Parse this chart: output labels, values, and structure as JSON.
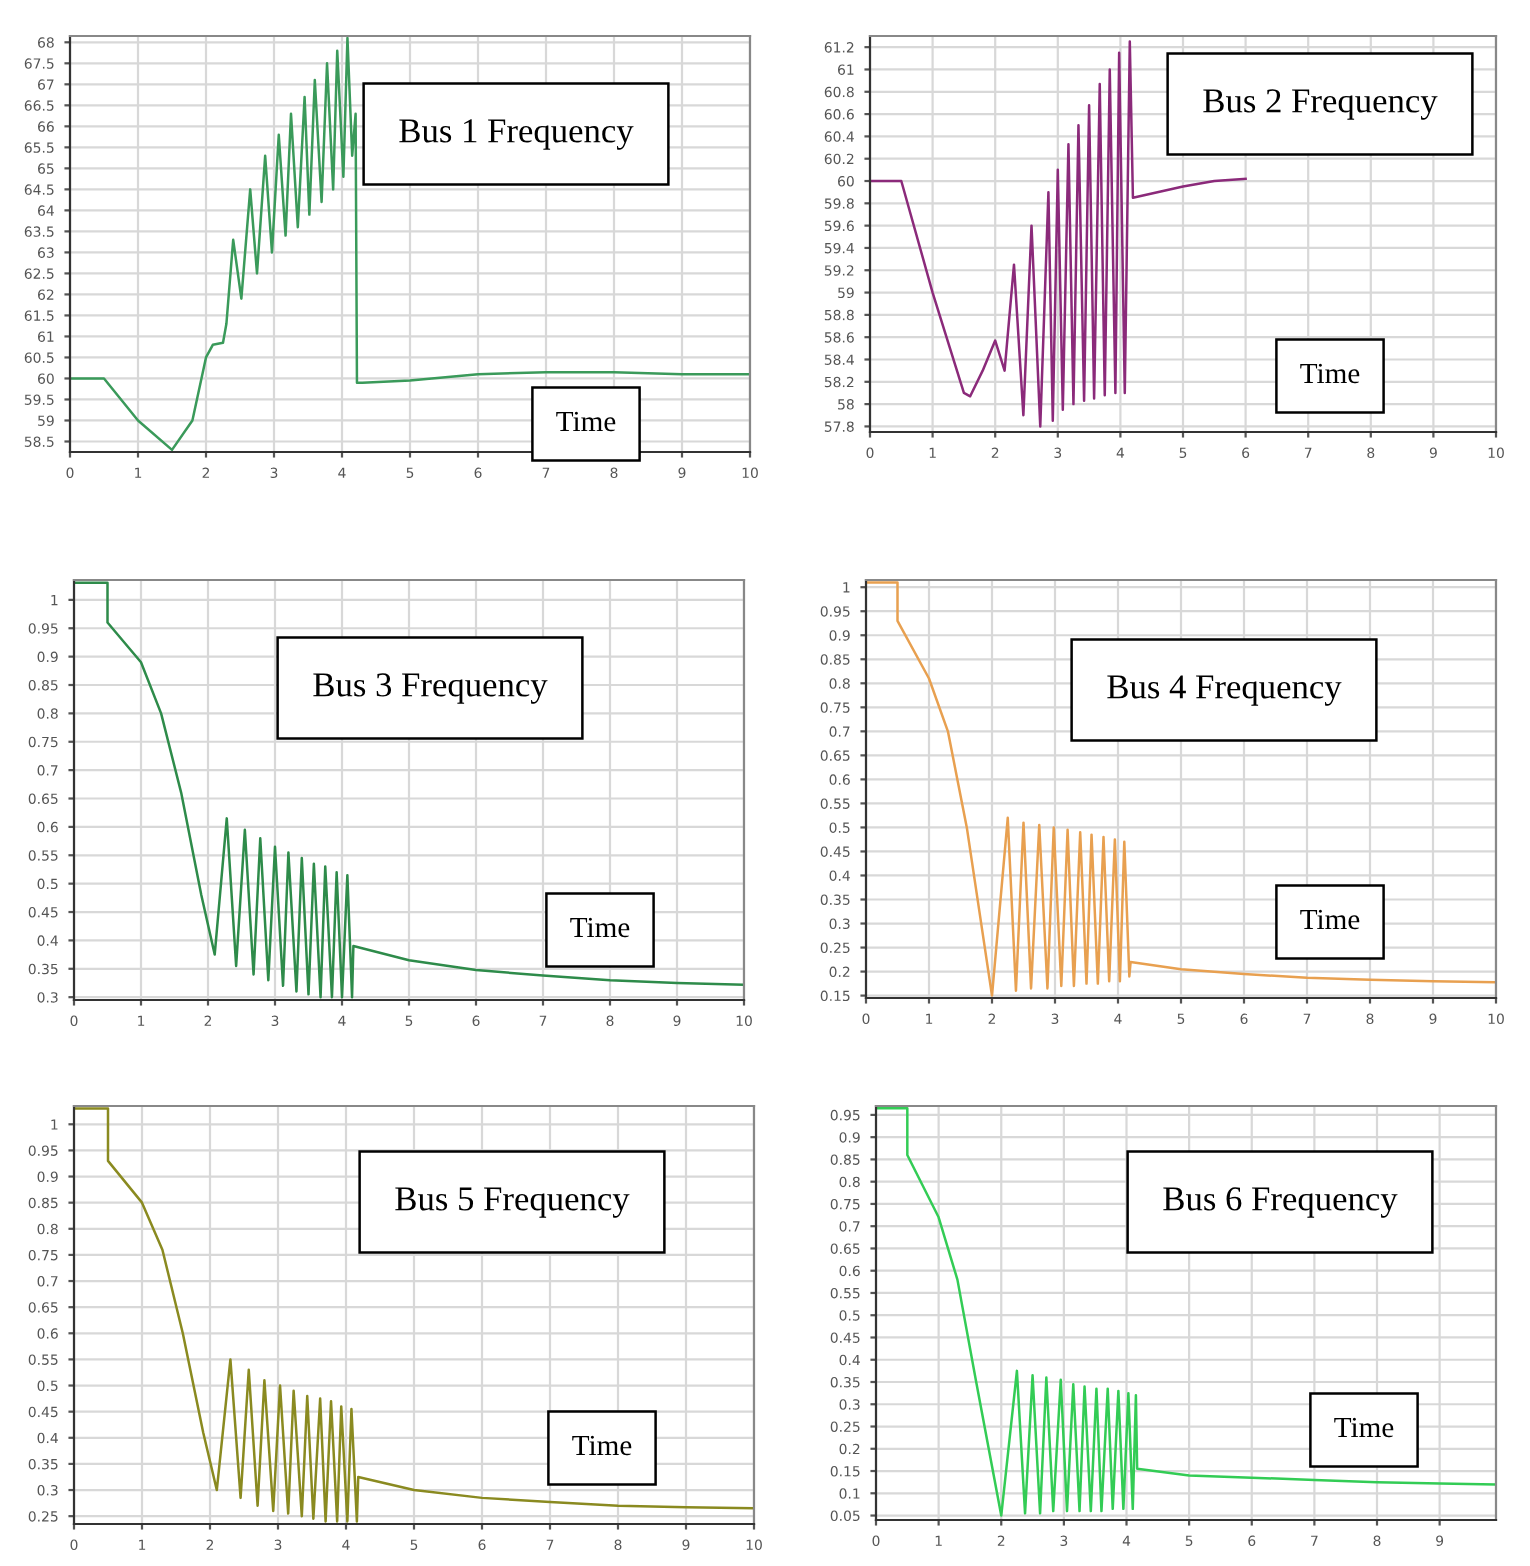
{
  "chart_data": [
    {
      "type": "line",
      "title": "Bus 1 Frequency",
      "xlabel": "Time",
      "grid": true,
      "xlim": [
        0,
        10
      ],
      "xticks": [
        0,
        1,
        2,
        3,
        4,
        5,
        6,
        7,
        8,
        9,
        10
      ],
      "ylim": [
        58.25,
        68.15
      ],
      "yticks": [
        58.5,
        59,
        59.5,
        60,
        60.5,
        61,
        61.5,
        62,
        62.5,
        63,
        63.5,
        64,
        64.5,
        65,
        65.5,
        66,
        66.5,
        67,
        67.5,
        68
      ],
      "x": [
        0,
        0.5,
        1.0,
        1.5,
        1.8,
        2.0,
        2.1,
        2.25,
        2.3,
        2.4,
        2.52,
        2.65,
        2.75,
        2.87,
        2.97,
        3.07,
        3.17,
        3.25,
        3.35,
        3.45,
        3.52,
        3.6,
        3.7,
        3.78,
        3.87,
        3.93,
        4.02,
        4.08,
        4.15,
        4.2,
        4.22,
        4.3,
        5,
        6,
        7,
        8,
        9,
        10
      ],
      "series": [
        {
          "color": "#3a9a5a",
          "values": [
            60,
            60,
            59.0,
            58.3,
            59.0,
            60.5,
            60.8,
            60.85,
            61.3,
            63.3,
            61.9,
            64.5,
            62.5,
            65.3,
            63.0,
            65.8,
            63.4,
            66.3,
            63.6,
            66.7,
            63.9,
            67.1,
            64.2,
            67.5,
            64.5,
            67.8,
            64.8,
            68.1,
            65.3,
            66.3,
            59.9,
            59.9,
            59.95,
            60.1,
            60.15,
            60.15,
            60.1,
            60.1
          ]
        }
      ]
    },
    {
      "type": "line",
      "title": "Bus 2 Frequency",
      "xlabel": "Time",
      "grid": true,
      "xlim": [
        0,
        10
      ],
      "xticks": [
        0,
        1,
        2,
        3,
        4,
        5,
        6,
        7,
        8,
        9,
        10
      ],
      "ylim": [
        57.75,
        61.3
      ],
      "yticks": [
        57.8,
        58,
        58.2,
        58.4,
        58.6,
        58.8,
        59,
        59.2,
        59.4,
        59.6,
        59.8,
        60,
        60.2,
        60.4,
        60.6,
        60.8,
        61,
        61.2
      ],
      "x": [
        0,
        0.5,
        1.0,
        1.5,
        1.6,
        1.8,
        2.0,
        2.15,
        2.3,
        2.45,
        2.58,
        2.72,
        2.85,
        2.92,
        3.0,
        3.08,
        3.17,
        3.25,
        3.33,
        3.42,
        3.5,
        3.58,
        3.67,
        3.75,
        3.83,
        3.92,
        3.98,
        4.07,
        4.15,
        4.2,
        5,
        5.5,
        6
      ],
      "series": [
        {
          "color": "#8b2a7a",
          "values": [
            60,
            60,
            59.0,
            58.1,
            58.07,
            58.3,
            58.57,
            58.3,
            59.25,
            57.9,
            59.6,
            57.8,
            59.9,
            57.85,
            60.1,
            57.95,
            60.33,
            58.0,
            60.5,
            58.03,
            60.68,
            58.05,
            60.87,
            58.08,
            61.0,
            58.1,
            61.15,
            58.1,
            61.25,
            59.85,
            59.95,
            60.0,
            60.02
          ]
        }
      ]
    },
    {
      "type": "line",
      "title": "Bus 3 Frequency",
      "xlabel": "Time",
      "grid": true,
      "xlim": [
        0,
        10
      ],
      "xticks": [
        0,
        1,
        2,
        3,
        4,
        5,
        6,
        7,
        8,
        9,
        10
      ],
      "ylim": [
        0.295,
        1.035
      ],
      "yticks": [
        0.3,
        0.35,
        0.4,
        0.45,
        0.5,
        0.55,
        0.6,
        0.65,
        0.7,
        0.75,
        0.8,
        0.85,
        0.9,
        0.95,
        1
      ],
      "x": [
        0,
        0.5,
        0.5,
        1.0,
        1.3,
        1.6,
        1.9,
        2.1,
        2.28,
        2.42,
        2.55,
        2.68,
        2.78,
        2.9,
        3.0,
        3.12,
        3.2,
        3.32,
        3.4,
        3.5,
        3.58,
        3.68,
        3.75,
        3.85,
        3.92,
        4.0,
        4.08,
        4.15,
        4.17,
        5,
        6,
        7,
        8,
        9,
        10
      ],
      "series": [
        {
          "color": "#2e8b4a",
          "values": [
            1.03,
            1.03,
            0.96,
            0.89,
            0.8,
            0.66,
            0.48,
            0.375,
            0.615,
            0.355,
            0.595,
            0.34,
            0.58,
            0.33,
            0.565,
            0.32,
            0.555,
            0.31,
            0.545,
            0.305,
            0.535,
            0.3,
            0.53,
            0.3,
            0.52,
            0.3,
            0.515,
            0.3,
            0.39,
            0.365,
            0.348,
            0.338,
            0.33,
            0.325,
            0.322
          ]
        }
      ]
    },
    {
      "type": "line",
      "title": "Bus 4 Frequency",
      "xlabel": "Time",
      "grid": true,
      "xlim": [
        0,
        10
      ],
      "xticks": [
        0,
        1,
        2,
        3,
        4,
        5,
        6,
        7,
        8,
        9,
        10
      ],
      "ylim": [
        0.145,
        1.015
      ],
      "yticks": [
        0.15,
        0.2,
        0.25,
        0.3,
        0.35,
        0.4,
        0.45,
        0.5,
        0.55,
        0.6,
        0.65,
        0.7,
        0.75,
        0.8,
        0.85,
        0.9,
        0.95,
        1
      ],
      "x": [
        0,
        0.5,
        0.5,
        1.0,
        1.3,
        1.6,
        2.0,
        2.25,
        2.38,
        2.5,
        2.62,
        2.75,
        2.88,
        2.98,
        3.1,
        3.2,
        3.3,
        3.4,
        3.5,
        3.58,
        3.68,
        3.77,
        3.86,
        3.95,
        4.03,
        4.1,
        4.18,
        4.2,
        5,
        6,
        7,
        8,
        9,
        10
      ],
      "series": [
        {
          "color": "#e8a050",
          "values": [
            1.01,
            1.01,
            0.93,
            0.81,
            0.7,
            0.5,
            0.15,
            0.52,
            0.16,
            0.51,
            0.165,
            0.505,
            0.165,
            0.5,
            0.17,
            0.495,
            0.17,
            0.49,
            0.175,
            0.485,
            0.175,
            0.48,
            0.18,
            0.475,
            0.18,
            0.47,
            0.19,
            0.22,
            0.205,
            0.195,
            0.187,
            0.183,
            0.18,
            0.178
          ]
        }
      ]
    },
    {
      "type": "line",
      "title": "Bus 5 Frequency",
      "xlabel": "Time",
      "grid": true,
      "xlim": [
        0,
        10
      ],
      "xticks": [
        0,
        1,
        2,
        3,
        4,
        5,
        6,
        7,
        8,
        9,
        10
      ],
      "ylim": [
        0.235,
        1.035
      ],
      "yticks": [
        0.25,
        0.3,
        0.35,
        0.4,
        0.45,
        0.5,
        0.55,
        0.6,
        0.65,
        0.7,
        0.75,
        0.8,
        0.85,
        0.9,
        0.95,
        1
      ],
      "x": [
        0,
        0.5,
        0.5,
        1.0,
        1.3,
        1.6,
        1.9,
        2.1,
        2.3,
        2.45,
        2.57,
        2.7,
        2.8,
        2.93,
        3.03,
        3.15,
        3.23,
        3.35,
        3.43,
        3.52,
        3.62,
        3.7,
        3.78,
        3.87,
        3.93,
        4.02,
        4.08,
        4.16,
        4.18,
        5,
        6,
        7,
        8,
        9,
        10
      ],
      "series": [
        {
          "color": "#8a8a20",
          "values": [
            1.03,
            1.03,
            0.93,
            0.85,
            0.76,
            0.6,
            0.41,
            0.3,
            0.55,
            0.285,
            0.53,
            0.27,
            0.51,
            0.26,
            0.5,
            0.255,
            0.49,
            0.25,
            0.48,
            0.245,
            0.475,
            0.24,
            0.47,
            0.24,
            0.46,
            0.24,
            0.455,
            0.24,
            0.325,
            0.3,
            0.285,
            0.277,
            0.27,
            0.267,
            0.265
          ]
        }
      ]
    },
    {
      "type": "line",
      "title": "Bus 6 Frequency",
      "xlabel": "Time",
      "grid": true,
      "xlim": [
        0,
        9.9
      ],
      "xticks": [
        0,
        1,
        2,
        3,
        4,
        5,
        6,
        7,
        8,
        9
      ],
      "ylim": [
        0.04,
        0.97
      ],
      "yticks": [
        0.05,
        0.1,
        0.15,
        0.2,
        0.25,
        0.3,
        0.35,
        0.4,
        0.45,
        0.5,
        0.55,
        0.6,
        0.65,
        0.7,
        0.75,
        0.8,
        0.85,
        0.9,
        0.95
      ],
      "x": [
        0,
        0.5,
        0.5,
        1.0,
        1.3,
        1.6,
        2.0,
        2.25,
        2.38,
        2.5,
        2.62,
        2.72,
        2.83,
        2.95,
        3.05,
        3.15,
        3.25,
        3.33,
        3.43,
        3.52,
        3.6,
        3.7,
        3.78,
        3.87,
        3.95,
        4.03,
        4.1,
        4.15,
        4.17,
        5,
        6,
        7,
        8,
        9,
        9.9
      ],
      "series": [
        {
          "color": "#33cc55",
          "values": [
            0.965,
            0.965,
            0.86,
            0.72,
            0.58,
            0.35,
            0.05,
            0.375,
            0.055,
            0.365,
            0.055,
            0.36,
            0.06,
            0.355,
            0.06,
            0.345,
            0.06,
            0.34,
            0.06,
            0.335,
            0.06,
            0.335,
            0.065,
            0.33,
            0.065,
            0.325,
            0.065,
            0.32,
            0.155,
            0.14,
            0.135,
            0.13,
            0.125,
            0.122,
            0.12
          ]
        }
      ]
    }
  ]
}
